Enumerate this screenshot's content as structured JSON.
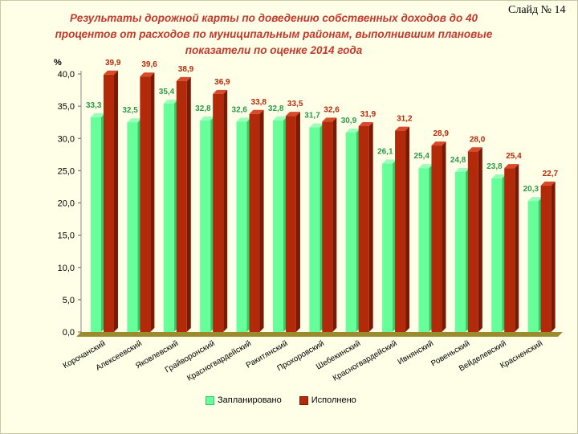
{
  "slide_number": "Слайд № 14",
  "chart_data": {
    "type": "bar",
    "title": "Результаты дорожной карты по доведению собственных доходов до 40 процентов от расходов по муниципальным районам, выполнившим плановые показатели по оценке 2014 года",
    "ylabel": "%",
    "xlabel": "",
    "ylim": [
      0,
      40
    ],
    "yticks": [
      "0,0",
      "5,0",
      "10,0",
      "15,0",
      "20,0",
      "25,0",
      "30,0",
      "35,0",
      "40,0"
    ],
    "categories": [
      "Корочанский",
      "Алексеевский",
      "Яковлевский",
      "Грайворонский",
      "Красногвардейский",
      "Ракитянский",
      "Прохоровский",
      "Шебекинский",
      "Красногвардейский",
      "Ивнянский",
      "Ровеньский",
      "Вейделевский",
      "Красненский"
    ],
    "series": [
      {
        "name": "Запланировано",
        "color": "#66ff99",
        "values": [
          33.3,
          32.5,
          35.4,
          32.8,
          32.6,
          32.8,
          31.7,
          30.9,
          26.1,
          25.4,
          24.8,
          23.8,
          20.3
        ],
        "labels": [
          "33,3",
          "32,5",
          "35,4",
          "32,8",
          "32,6",
          "32,8",
          "31,7",
          "30,9",
          "26,1",
          "25,4",
          "24,8",
          "23,8",
          "20,3"
        ]
      },
      {
        "name": "Исполнено",
        "color": "#b22a0a",
        "values": [
          39.9,
          39.6,
          38.9,
          36.9,
          33.8,
          33.5,
          32.6,
          31.9,
          31.2,
          28.9,
          28.0,
          25.4,
          22.7
        ],
        "labels": [
          "39,9",
          "39,6",
          "38,9",
          "36,9",
          "33,8",
          "33,5",
          "32,6",
          "31,9",
          "31,2",
          "28,9",
          "28,0",
          "25,4",
          "22,7"
        ]
      }
    ],
    "legend": "bottom"
  }
}
